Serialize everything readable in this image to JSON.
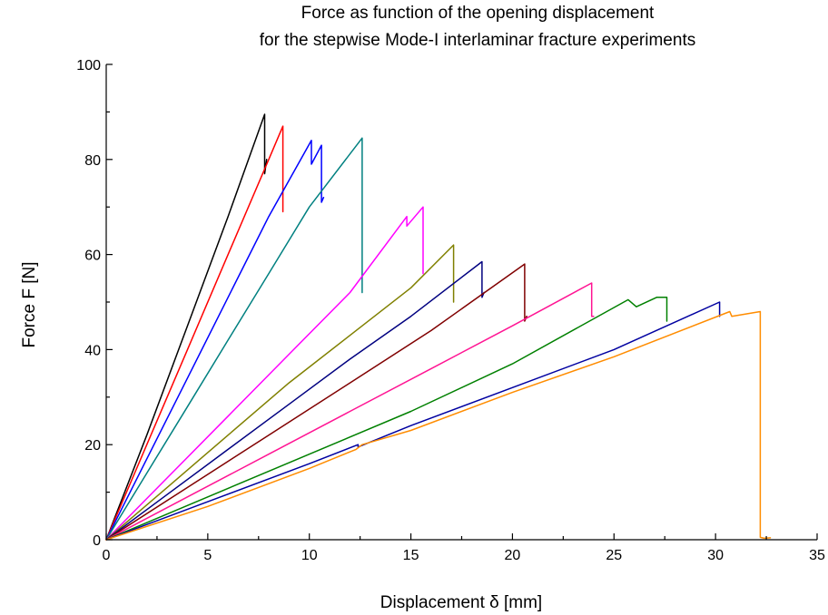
{
  "chart_data": {
    "type": "line",
    "title_lines": [
      "Force as function of the opening displacement",
      "for the stepwise Mode-I interlaminar fracture experiments"
    ],
    "xlabel": "Displacement δ [mm]",
    "ylabel": "Force F [N]",
    "xlim": [
      0,
      35
    ],
    "ylim": [
      0,
      100
    ],
    "xticks": [
      0,
      5,
      10,
      15,
      20,
      25,
      30,
      35
    ],
    "yticks": [
      0,
      20,
      40,
      60,
      80,
      100
    ],
    "grid": false,
    "legend": "none",
    "series": [
      {
        "color": "#000000",
        "x": [
          0,
          2,
          4,
          6,
          7.8,
          7.8,
          7.9
        ],
        "y": [
          0,
          22,
          45,
          68,
          89.5,
          77,
          80
        ]
      },
      {
        "color": "#ff0000",
        "x": [
          0,
          2,
          4,
          6,
          8,
          8.7,
          8.7
        ],
        "y": [
          0,
          20,
          40,
          60,
          80,
          87,
          69
        ]
      },
      {
        "color": "#0000ff",
        "x": [
          0,
          2,
          4,
          6,
          8,
          10.1,
          10.1,
          10.6,
          10.6,
          10.7
        ],
        "y": [
          0,
          17,
          34,
          51,
          68,
          84,
          79,
          83,
          71,
          72
        ]
      },
      {
        "color": "#008080",
        "x": [
          0,
          2,
          4,
          6,
          8,
          10,
          12.6,
          12.6,
          12.6
        ],
        "y": [
          0,
          14,
          28,
          42,
          56,
          70,
          84.5,
          72,
          52
        ]
      },
      {
        "color": "#ff00ff",
        "x": [
          0,
          3,
          6,
          9,
          12,
          14.8,
          14.8,
          15.6,
          15.6
        ],
        "y": [
          0,
          13,
          26,
          39,
          52,
          68,
          66,
          70,
          56
        ]
      },
      {
        "color": "#808000",
        "x": [
          0,
          3,
          6,
          9,
          12,
          15,
          17.1,
          17.1
        ],
        "y": [
          0,
          11,
          22,
          33,
          43,
          53,
          62,
          50
        ]
      },
      {
        "color": "#000080",
        "x": [
          0,
          3,
          6,
          9,
          12,
          15,
          18.5,
          18.5,
          18.6
        ],
        "y": [
          0,
          9.5,
          19,
          28.5,
          38,
          47,
          58.5,
          51,
          52
        ]
      },
      {
        "color": "#800000",
        "x": [
          0,
          4,
          8,
          12,
          16,
          20.6,
          20.6,
          20.7
        ],
        "y": [
          0,
          11,
          22,
          33,
          44,
          58,
          46,
          47
        ]
      },
      {
        "color": "#ff1493",
        "x": [
          0,
          4,
          8,
          12,
          16,
          20,
          23.9,
          23.9,
          24
        ],
        "y": [
          0,
          9,
          18,
          27,
          36,
          45,
          54,
          47,
          47
        ]
      },
      {
        "color": "#008000",
        "x": [
          0,
          5,
          10,
          15,
          20,
          25.7,
          26.1,
          27.1,
          27.6,
          27.6
        ],
        "y": [
          0,
          9,
          18,
          27,
          37,
          50.5,
          49,
          51,
          51,
          46
        ]
      },
      {
        "color": "#0000a0",
        "x": [
          0,
          5,
          10,
          12.4,
          12.4,
          15,
          20,
          25,
          30.2,
          30.2
        ],
        "y": [
          0,
          8,
          16,
          20,
          19.5,
          24,
          32,
          40,
          50,
          47
        ]
      },
      {
        "color": "#ff8c00",
        "x": [
          0,
          5,
          10,
          12.3,
          12.6,
          15,
          20,
          25,
          30.7,
          30.8,
          32.2,
          32.2,
          32.4,
          32.7
        ],
        "y": [
          0,
          7,
          15,
          19,
          20,
          23,
          31,
          38.5,
          48,
          47,
          48,
          0.5,
          0.3,
          0.4
        ]
      }
    ]
  }
}
